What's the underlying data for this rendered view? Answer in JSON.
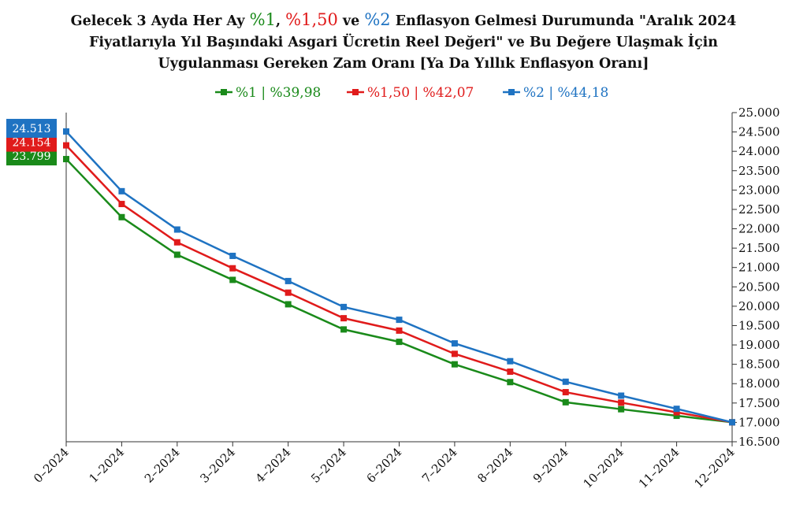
{
  "title": {
    "line1_pre": "Gelecek 3 Ayda Her Ay ",
    "r1": "%1",
    "sep1": ", ",
    "r2": "%1,50",
    "sep2": " ve ",
    "r3": "%2",
    "line1_post": " Enflasyon Gelmesi Durumunda \"Aralık 2024",
    "line2": "Fiyatlarıyla Yıl Başındaki Asgari Ücretin Reel Değeri\" ve Bu Değere Ulaşmak İçin",
    "line3": "Uygulanması Gereken Zam Oranı [Ya Da Yıllık Enflasyon Oranı]"
  },
  "colors": {
    "green": "#1a8a1a",
    "red": "#e01b1b",
    "blue": "#1f73c2"
  },
  "chart_data": {
    "type": "line",
    "categories": [
      "0–2024",
      "1–2024",
      "2–2024",
      "3–2024",
      "4–2024",
      "5–2024",
      "6–2024",
      "7–2024",
      "8–2024",
      "9–2024",
      "10–2024",
      "11–2024",
      "12–2024"
    ],
    "ylim": [
      16500,
      25000
    ],
    "ytick_step": 500,
    "ytick_labels": [
      "16.500",
      "17.000",
      "17.500",
      "18.000",
      "18.500",
      "19.000",
      "19.500",
      "20.000",
      "20.500",
      "21.000",
      "21.500",
      "22.000",
      "22.500",
      "23.000",
      "23.500",
      "24.000",
      "24.500",
      "25.000"
    ],
    "y_axis_position": "right",
    "legend_position": "top",
    "series": [
      {
        "name": "%1 | %39,98",
        "color": "#1a8a1a",
        "values": [
          23799,
          22300,
          21330,
          20680,
          20050,
          19400,
          19080,
          18500,
          18040,
          17520,
          17340,
          17170,
          17002
        ],
        "start_label": "23.799"
      },
      {
        "name": "%1,50 | %42,07",
        "color": "#e01b1b",
        "values": [
          24154,
          22640,
          21650,
          20980,
          20350,
          19690,
          19370,
          18770,
          18310,
          17780,
          17510,
          17260,
          17002
        ],
        "start_label": "24.154"
      },
      {
        "name": "%2 | %44,18",
        "color": "#1f73c2",
        "values": [
          24513,
          22970,
          21980,
          21300,
          20650,
          19980,
          19650,
          19040,
          18580,
          18050,
          17690,
          17350,
          17002
        ],
        "start_label": "24.513"
      }
    ]
  }
}
